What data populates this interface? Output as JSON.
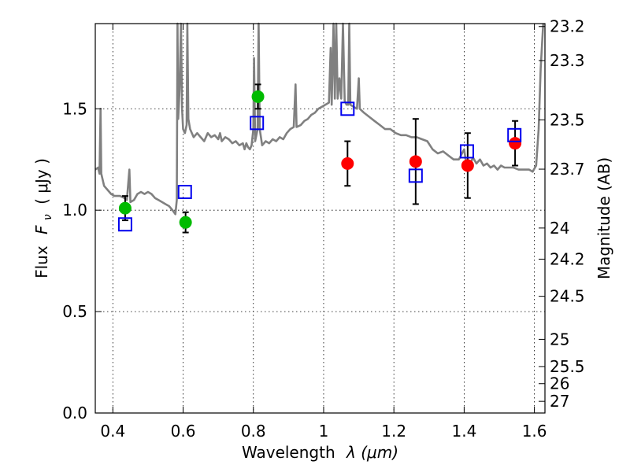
{
  "chart_data": {
    "type": "scatter",
    "title": "",
    "xlabel": "Wavelength",
    "xlabel_symbol": "λ (μm)",
    "ylabel": "Flux",
    "ylabel_symbol": "F",
    "ylabel_subscript": "ν",
    "ylabel_unit": "( μJy )",
    "y2label": "Magnitude (AB)",
    "xlim": [
      0.35,
      1.63
    ],
    "ylim": [
      0.0,
      1.92
    ],
    "grid": true,
    "x_ticks": [
      {
        "value": 0.4,
        "label": "0.4"
      },
      {
        "value": 0.6,
        "label": "0.6"
      },
      {
        "value": 0.8,
        "label": "0.8"
      },
      {
        "value": 1.0,
        "label": "1"
      },
      {
        "value": 1.2,
        "label": "1.2"
      },
      {
        "value": 1.4,
        "label": "1.4"
      },
      {
        "value": 1.6,
        "label": "1.6"
      }
    ],
    "y_ticks": [
      {
        "value": 0.0,
        "label": "0.0"
      },
      {
        "value": 0.5,
        "label": "0.5"
      },
      {
        "value": 1.0,
        "label": "1.0"
      },
      {
        "value": 1.5,
        "label": "1.5"
      }
    ],
    "mag_ticks": [
      {
        "mag": 23.2,
        "label": "23.2"
      },
      {
        "mag": 23.3,
        "label": "23.3"
      },
      {
        "mag": 23.5,
        "label": "23.5"
      },
      {
        "mag": 23.7,
        "label": "23.7"
      },
      {
        "mag": 24.0,
        "label": "24"
      },
      {
        "mag": 24.2,
        "label": "24.2"
      },
      {
        "mag": 24.5,
        "label": "24.5"
      },
      {
        "mag": 25.0,
        "label": "25"
      },
      {
        "mag": 25.5,
        "label": "25.5"
      },
      {
        "mag": 26.0,
        "label": "26"
      },
      {
        "mag": 27.0,
        "label": "27"
      }
    ],
    "series": [
      {
        "kind": "line",
        "color": "#808080",
        "points": [
          [
            0.35,
            1.2
          ],
          [
            0.358,
            1.21
          ],
          [
            0.362,
            1.18
          ],
          [
            0.365,
            1.5
          ],
          [
            0.367,
            1.18
          ],
          [
            0.375,
            1.12
          ],
          [
            0.385,
            1.1
          ],
          [
            0.395,
            1.08
          ],
          [
            0.405,
            1.07
          ],
          [
            0.42,
            1.07
          ],
          [
            0.433,
            1.06
          ],
          [
            0.44,
            1.05
          ],
          [
            0.447,
            1.2
          ],
          [
            0.45,
            1.04
          ],
          [
            0.46,
            1.05
          ],
          [
            0.47,
            1.08
          ],
          [
            0.48,
            1.09
          ],
          [
            0.49,
            1.08
          ],
          [
            0.5,
            1.09
          ],
          [
            0.51,
            1.08
          ],
          [
            0.52,
            1.06
          ],
          [
            0.53,
            1.05
          ],
          [
            0.54,
            1.04
          ],
          [
            0.55,
            1.03
          ],
          [
            0.56,
            1.02
          ],
          [
            0.57,
            1.0
          ],
          [
            0.578,
            0.98
          ],
          [
            0.582,
            1.05
          ],
          [
            0.584,
            1.92
          ],
          [
            0.586,
            1.45
          ],
          [
            0.59,
            1.6
          ],
          [
            0.594,
            1.92
          ],
          [
            0.597,
            1.5
          ],
          [
            0.6,
            1.4
          ],
          [
            0.605,
            1.38
          ],
          [
            0.61,
            1.42
          ],
          [
            0.612,
            1.92
          ],
          [
            0.615,
            1.45
          ],
          [
            0.62,
            1.4
          ],
          [
            0.63,
            1.36
          ],
          [
            0.64,
            1.38
          ],
          [
            0.65,
            1.36
          ],
          [
            0.66,
            1.34
          ],
          [
            0.67,
            1.38
          ],
          [
            0.68,
            1.36
          ],
          [
            0.69,
            1.37
          ],
          [
            0.7,
            1.35
          ],
          [
            0.705,
            1.38
          ],
          [
            0.71,
            1.34
          ],
          [
            0.72,
            1.36
          ],
          [
            0.73,
            1.35
          ],
          [
            0.74,
            1.33
          ],
          [
            0.75,
            1.34
          ],
          [
            0.76,
            1.32
          ],
          [
            0.77,
            1.33
          ],
          [
            0.775,
            1.3
          ],
          [
            0.78,
            1.33
          ],
          [
            0.785,
            1.31
          ],
          [
            0.79,
            1.3
          ],
          [
            0.795,
            1.32
          ],
          [
            0.8,
            1.4
          ],
          [
            0.802,
            1.75
          ],
          [
            0.805,
            1.34
          ],
          [
            0.812,
            1.4
          ],
          [
            0.815,
            1.92
          ],
          [
            0.818,
            1.4
          ],
          [
            0.825,
            1.32
          ],
          [
            0.835,
            1.34
          ],
          [
            0.845,
            1.33
          ],
          [
            0.855,
            1.35
          ],
          [
            0.865,
            1.34
          ],
          [
            0.875,
            1.36
          ],
          [
            0.885,
            1.35
          ],
          [
            0.895,
            1.38
          ],
          [
            0.905,
            1.4
          ],
          [
            0.915,
            1.41
          ],
          [
            0.92,
            1.62
          ],
          [
            0.923,
            1.41
          ],
          [
            0.935,
            1.42
          ],
          [
            0.945,
            1.44
          ],
          [
            0.955,
            1.45
          ],
          [
            0.965,
            1.47
          ],
          [
            0.975,
            1.48
          ],
          [
            0.985,
            1.5
          ],
          [
            0.995,
            1.51
          ],
          [
            1.005,
            1.52
          ],
          [
            1.015,
            1.53
          ],
          [
            1.02,
            1.8
          ],
          [
            1.023,
            1.52
          ],
          [
            1.028,
            1.92
          ],
          [
            1.032,
            1.55
          ],
          [
            1.036,
            1.92
          ],
          [
            1.04,
            1.55
          ],
          [
            1.045,
            1.65
          ],
          [
            1.05,
            1.55
          ],
          [
            1.055,
            1.92
          ],
          [
            1.06,
            1.54
          ],
          [
            1.065,
            1.52
          ],
          [
            1.07,
            1.52
          ],
          [
            1.073,
            1.92
          ],
          [
            1.076,
            1.52
          ],
          [
            1.085,
            1.51
          ],
          [
            1.095,
            1.5
          ],
          [
            1.1,
            1.65
          ],
          [
            1.103,
            1.5
          ],
          [
            1.115,
            1.48
          ],
          [
            1.13,
            1.46
          ],
          [
            1.145,
            1.44
          ],
          [
            1.16,
            1.42
          ],
          [
            1.175,
            1.4
          ],
          [
            1.19,
            1.4
          ],
          [
            1.205,
            1.38
          ],
          [
            1.22,
            1.37
          ],
          [
            1.235,
            1.37
          ],
          [
            1.25,
            1.36
          ],
          [
            1.265,
            1.36
          ],
          [
            1.28,
            1.35
          ],
          [
            1.295,
            1.34
          ],
          [
            1.31,
            1.3
          ],
          [
            1.325,
            1.28
          ],
          [
            1.34,
            1.29
          ],
          [
            1.355,
            1.27
          ],
          [
            1.37,
            1.25
          ],
          [
            1.385,
            1.25
          ],
          [
            1.4,
            1.3
          ],
          [
            1.405,
            1.24
          ],
          [
            1.415,
            1.22
          ],
          [
            1.425,
            1.26
          ],
          [
            1.435,
            1.23
          ],
          [
            1.445,
            1.25
          ],
          [
            1.455,
            1.22
          ],
          [
            1.465,
            1.23
          ],
          [
            1.475,
            1.21
          ],
          [
            1.485,
            1.22
          ],
          [
            1.495,
            1.2
          ],
          [
            1.505,
            1.22
          ],
          [
            1.515,
            1.21
          ],
          [
            1.525,
            1.21
          ],
          [
            1.54,
            1.21
          ],
          [
            1.555,
            1.2
          ],
          [
            1.57,
            1.2
          ],
          [
            1.585,
            1.2
          ],
          [
            1.595,
            1.19
          ],
          [
            1.605,
            1.22
          ],
          [
            1.612,
            1.4
          ],
          [
            1.618,
            1.7
          ],
          [
            1.625,
            1.92
          ]
        ]
      },
      {
        "kind": "points-with-errors",
        "color": "#00bb00",
        "marker": "circle",
        "points": [
          {
            "x": 0.435,
            "y": 1.01,
            "err": 0.06
          },
          {
            "x": 0.607,
            "y": 0.94,
            "err": 0.05
          },
          {
            "x": 0.813,
            "y": 1.56,
            "err": 0.06
          }
        ]
      },
      {
        "kind": "points-with-errors",
        "color": "#ff0000",
        "marker": "circle",
        "points": [
          {
            "x": 1.068,
            "y": 1.23,
            "err": 0.11
          },
          {
            "x": 1.262,
            "y": 1.24,
            "err": 0.21
          },
          {
            "x": 1.41,
            "y": 1.22,
            "err": 0.16
          },
          {
            "x": 1.545,
            "y": 1.33,
            "err": 0.11
          }
        ]
      },
      {
        "kind": "points",
        "color": "#0000ee",
        "marker": "open-square",
        "points": [
          {
            "x": 0.435,
            "y": 0.93
          },
          {
            "x": 0.605,
            "y": 1.09
          },
          {
            "x": 0.81,
            "y": 1.43
          },
          {
            "x": 1.068,
            "y": 1.5
          },
          {
            "x": 1.262,
            "y": 1.17
          },
          {
            "x": 1.408,
            "y": 1.29
          },
          {
            "x": 1.543,
            "y": 1.37
          }
        ]
      }
    ]
  }
}
